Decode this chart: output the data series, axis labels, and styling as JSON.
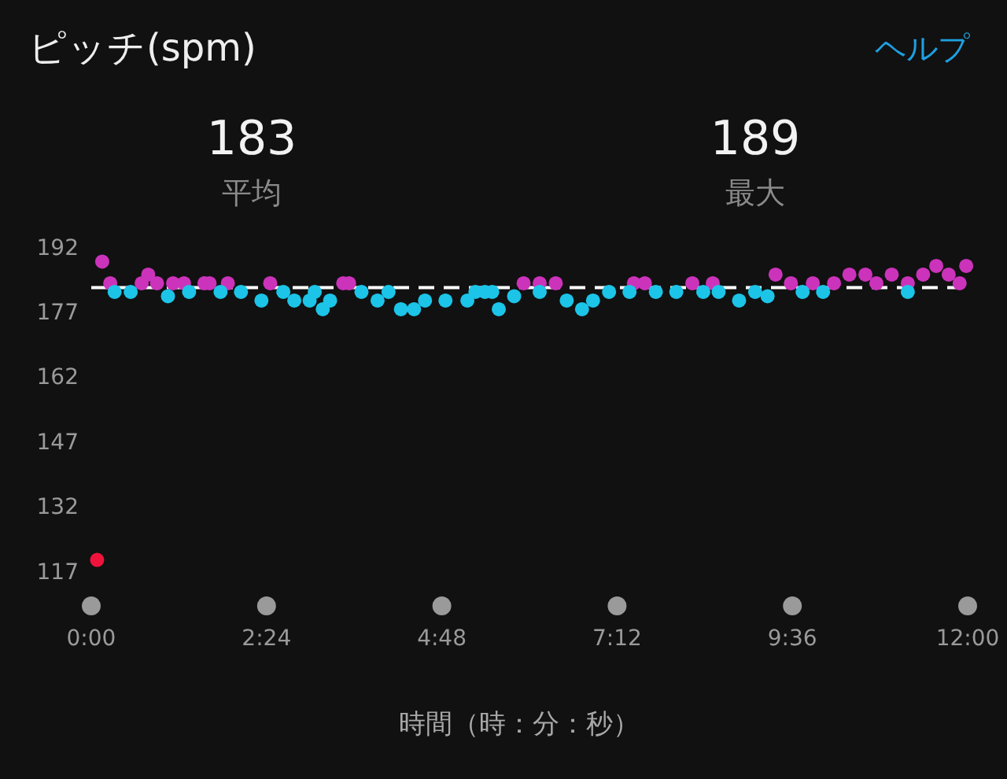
{
  "chart_data": {
    "type": "scatter",
    "title": "ピッチ(spm)",
    "xlabel": "時間（時：分：秒）",
    "annotations": [
      "183",
      "平均",
      "189",
      "最大",
      "ヘルプ"
    ],
    "marker": "circle",
    "xlim": [
      0,
      12
    ],
    "ylim": [
      117,
      192
    ],
    "xticks": [
      {
        "value": 0,
        "label": "0:00"
      },
      {
        "value": 2.4,
        "label": "2:24"
      },
      {
        "value": 4.8,
        "label": "4:48"
      },
      {
        "value": 7.2,
        "label": "7:12"
      },
      {
        "value": 9.6,
        "label": "9:36"
      },
      {
        "value": 12,
        "label": "12:00"
      }
    ],
    "yticks": [
      117,
      132,
      147,
      162,
      177,
      192
    ],
    "ref_lines": [
      {
        "axis": "y",
        "value": 183,
        "color": "#ffffff",
        "line_style": "dashed"
      }
    ],
    "series": [
      {
        "color": "#cc33bb",
        "x": [
          0.15,
          0.26,
          0.69,
          0.78,
          0.9,
          1.12,
          1.27,
          1.55,
          1.62,
          1.87,
          2.45,
          3.45,
          3.53,
          5.92,
          6.14,
          6.36,
          7.43,
          7.58,
          8.23,
          8.51,
          9.37,
          9.58,
          9.88,
          10.17,
          10.38,
          10.6,
          10.75,
          10.96,
          11.18,
          11.39,
          11.57,
          11.74,
          11.89,
          11.98
        ],
        "values": [
          189,
          184,
          184,
          186,
          184,
          184,
          184,
          184,
          184,
          184,
          184,
          184,
          184,
          184,
          184,
          184,
          184,
          184,
          184,
          184,
          186,
          184,
          184,
          184,
          186,
          186,
          184,
          186,
          184,
          186,
          188,
          186,
          184,
          188
        ]
      },
      {
        "color": "#1cc4e8",
        "x": [
          0.32,
          0.54,
          1.05,
          1.34,
          1.77,
          2.05,
          2.33,
          2.63,
          2.78,
          2.99,
          3.06,
          3.17,
          3.27,
          3.7,
          3.92,
          4.07,
          4.24,
          4.42,
          4.57,
          4.85,
          5.15,
          5.26,
          5.39,
          5.49,
          5.58,
          5.79,
          6.14,
          6.51,
          6.72,
          6.87,
          7.09,
          7.37,
          7.73,
          8.01,
          8.38,
          8.59,
          8.87,
          9.09,
          9.26,
          9.74,
          10.02,
          11.18
        ],
        "values": [
          182,
          182,
          181,
          182,
          182,
          182,
          180,
          182,
          180,
          180,
          182,
          178,
          180,
          182,
          180,
          182,
          178,
          178,
          180,
          180,
          180,
          182,
          182,
          182,
          178,
          181,
          182,
          180,
          178,
          180,
          182,
          182,
          182,
          182,
          182,
          182,
          180,
          182,
          181,
          182,
          182,
          182
        ]
      },
      {
        "color": "#f0143c",
        "x": [
          0.08
        ],
        "values": [
          120
        ]
      }
    ]
  }
}
